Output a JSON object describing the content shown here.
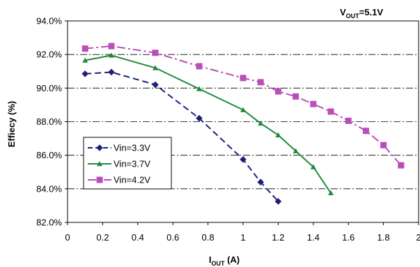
{
  "chart_data": {
    "type": "line",
    "annotation": {
      "main": "V",
      "sub": "OUT",
      "suffix": "=5.1V"
    },
    "xlabel": {
      "main": "I",
      "sub": "OUT",
      "suffix": " (A)"
    },
    "ylabel": "Effiecy (%)",
    "xlim": [
      0,
      2
    ],
    "ylim": [
      82,
      94
    ],
    "x_ticks": [
      {
        "value": 0,
        "label": "0"
      },
      {
        "value": 0.2,
        "label": "0.2"
      },
      {
        "value": 0.4,
        "label": "0.4"
      },
      {
        "value": 0.6,
        "label": "0.6"
      },
      {
        "value": 0.8,
        "label": "0.8"
      },
      {
        "value": 1.0,
        "label": "1"
      },
      {
        "value": 1.2,
        "label": "1.2"
      },
      {
        "value": 1.4,
        "label": "1.4"
      },
      {
        "value": 1.6,
        "label": "1.6"
      },
      {
        "value": 1.8,
        "label": "1.8"
      },
      {
        "value": 2.0,
        "label": "2"
      }
    ],
    "y_ticks": [
      {
        "value": 82,
        "label": "82.0%"
      },
      {
        "value": 84,
        "label": "84.0%"
      },
      {
        "value": 86,
        "label": "86.0%"
      },
      {
        "value": 88,
        "label": "88.0%"
      },
      {
        "value": 90,
        "label": "90.0%"
      },
      {
        "value": 92,
        "label": "92.0%"
      },
      {
        "value": 94,
        "label": "94.0%"
      }
    ],
    "grid": "horizontal dash-dot",
    "legend_position": "bottom-left",
    "series": [
      {
        "name": "Vin=3.3V",
        "color": "#1f1f7a",
        "marker": "diamond",
        "dash": "dashed",
        "x": [
          0.1,
          0.25,
          0.5,
          0.75,
          1.0,
          1.1,
          1.2
        ],
        "y": [
          90.85,
          90.95,
          90.2,
          88.2,
          85.75,
          84.4,
          83.25
        ]
      },
      {
        "name": "Vin=3.7V",
        "color": "#1e8a3c",
        "marker": "triangle",
        "dash": "solid",
        "x": [
          0.1,
          0.25,
          0.5,
          0.75,
          1.0,
          1.1,
          1.2,
          1.3,
          1.4,
          1.5
        ],
        "y": [
          91.65,
          91.95,
          91.2,
          89.95,
          88.7,
          87.9,
          87.2,
          86.25,
          85.3,
          83.75
        ]
      },
      {
        "name": "Vin=4.2V",
        "color": "#b84fb8",
        "marker": "square",
        "dash": "dashdot",
        "x": [
          0.1,
          0.25,
          0.5,
          0.75,
          1.0,
          1.1,
          1.2,
          1.3,
          1.4,
          1.5,
          1.6,
          1.7,
          1.8,
          1.9
        ],
        "y": [
          92.35,
          92.5,
          92.1,
          91.3,
          90.6,
          90.35,
          89.8,
          89.5,
          89.05,
          88.6,
          88.05,
          87.45,
          86.6,
          85.4
        ]
      }
    ]
  }
}
